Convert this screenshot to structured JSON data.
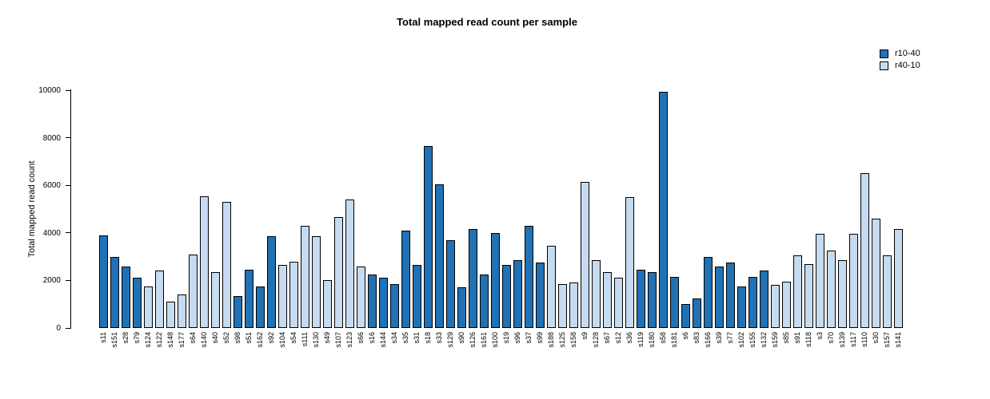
{
  "chart_data": {
    "type": "bar",
    "title": "Total mapped read count per sample",
    "xlabel": "",
    "ylabel": "Total mapped read count",
    "ylim": [
      0,
      10000
    ],
    "yticks": [
      0,
      2000,
      4000,
      6000,
      8000,
      10000
    ],
    "grid": false,
    "legend_position": "top-right",
    "legend": [
      {
        "label": "r10-40",
        "color": "#2171B5"
      },
      {
        "label": "r40-10",
        "color": "#C6DBEF"
      }
    ],
    "bar_border_color": "#000000",
    "categories": [
      "s11",
      "s151",
      "s28",
      "s79",
      "s124",
      "s122",
      "s148",
      "s177",
      "s64",
      "s140",
      "s40",
      "s52",
      "s98",
      "s51",
      "s162",
      "s92",
      "s104",
      "s54",
      "s111",
      "s130",
      "s49",
      "s107",
      "s123",
      "s66",
      "s16",
      "s144",
      "s34",
      "s35",
      "s31",
      "s18",
      "s33",
      "s129",
      "s90",
      "s126",
      "s161",
      "s100",
      "s19",
      "s96",
      "s37",
      "s99",
      "s188",
      "s125",
      "s158",
      "s9",
      "s128",
      "s67",
      "s12",
      "s36",
      "s119",
      "s180",
      "s58",
      "s181",
      "s6",
      "s83",
      "s166",
      "s39",
      "s77",
      "s102",
      "s155",
      "s132",
      "s159",
      "s85",
      "s91",
      "s118",
      "s3",
      "s70",
      "s139",
      "s117",
      "s110",
      "s30",
      "s157",
      "s141"
    ],
    "values": [
      3900,
      3000,
      2600,
      2100,
      1750,
      2400,
      1100,
      1400,
      3100,
      5550,
      2350,
      5300,
      1350,
      2450,
      1750,
      3850,
      2650,
      2800,
      4300,
      3850,
      2000,
      4650,
      5400,
      2600,
      2250,
      2100,
      1850,
      4100,
      2650,
      7650,
      6050,
      3700,
      1700,
      4150,
      2250,
      4000,
      2650,
      2850,
      4300,
      2750,
      3450,
      1850,
      1900,
      6150,
      2850,
      2350,
      2100,
      5500,
      2450,
      2350,
      9950,
      2150,
      1000,
      1250,
      3000,
      2600,
      2750,
      1750,
      2150,
      2400,
      1800,
      1950,
      3050,
      2700,
      3950,
      3250,
      2850,
      3950,
      6500,
      4600,
      3050,
      4150
    ],
    "groups": [
      "r10-40",
      "r10-40",
      "r10-40",
      "r10-40",
      "r40-10",
      "r40-10",
      "r40-10",
      "r40-10",
      "r40-10",
      "r40-10",
      "r40-10",
      "r40-10",
      "r10-40",
      "r10-40",
      "r10-40",
      "r10-40",
      "r40-10",
      "r40-10",
      "r40-10",
      "r40-10",
      "r40-10",
      "r40-10",
      "r40-10",
      "r40-10",
      "r10-40",
      "r10-40",
      "r10-40",
      "r10-40",
      "r10-40",
      "r10-40",
      "r10-40",
      "r10-40",
      "r10-40",
      "r10-40",
      "r10-40",
      "r10-40",
      "r10-40",
      "r10-40",
      "r10-40",
      "r10-40",
      "r40-10",
      "r40-10",
      "r40-10",
      "r40-10",
      "r40-10",
      "r40-10",
      "r40-10",
      "r40-10",
      "r10-40",
      "r10-40",
      "r10-40",
      "r10-40",
      "r10-40",
      "r10-40",
      "r10-40",
      "r10-40",
      "r10-40",
      "r10-40",
      "r10-40",
      "r10-40",
      "r40-10",
      "r40-10",
      "r40-10",
      "r40-10",
      "r40-10",
      "r40-10",
      "r40-10",
      "r40-10",
      "r40-10",
      "r40-10",
      "r40-10",
      "r40-10"
    ]
  }
}
